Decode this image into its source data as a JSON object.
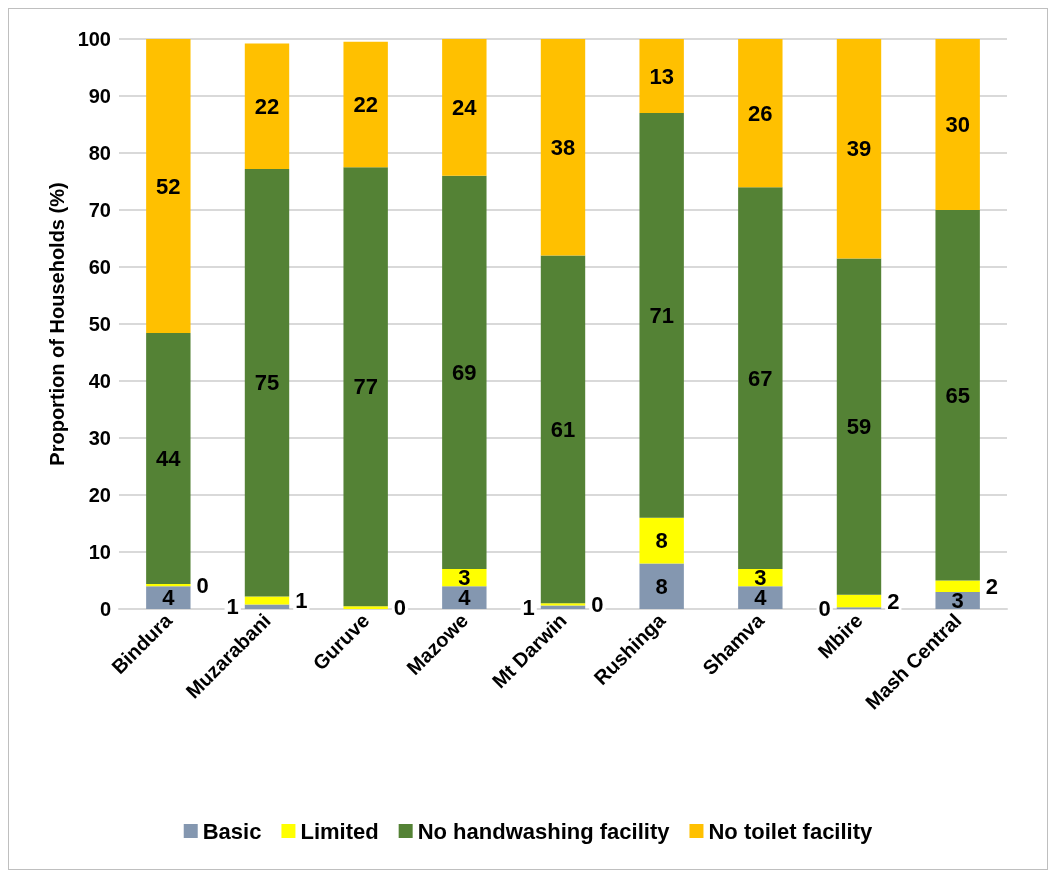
{
  "chart_data": {
    "type": "bar",
    "stacked": true,
    "ylabel": "Proportion of Households (%)",
    "categories": [
      "Bindura",
      "Muzarabani",
      "Guruve",
      "Mazowe",
      "Mt Darwin",
      "Rushinga",
      "Shamva",
      "Mbire",
      "Mash Central"
    ],
    "series": [
      {
        "name": "Basic",
        "color": "#8497b0",
        "values": [
          4,
          0.8,
          0,
          4,
          0.6,
          8,
          4,
          0.3,
          3
        ],
        "value_labels": [
          "4",
          "1",
          null,
          "4",
          "1",
          "8",
          "4",
          "0",
          "3"
        ]
      },
      {
        "name": "Limited",
        "color": "#ffff00",
        "values": [
          0.4,
          1.4,
          0.5,
          3,
          0.4,
          8,
          3,
          2.2,
          2
        ],
        "value_labels": [
          "0",
          "1",
          "0",
          "3",
          "0",
          "8",
          "3",
          "2",
          "2"
        ]
      },
      {
        "name": "No handwashing facility",
        "color": "#548235",
        "values": [
          44,
          75,
          77,
          69,
          61,
          71,
          67,
          59,
          65
        ],
        "value_labels": [
          "44",
          "75",
          "77",
          "69",
          "61",
          "71",
          "67",
          "59",
          "65"
        ]
      },
      {
        "name": "No toilet facility",
        "color": "#ffc000",
        "values": [
          51.6,
          22,
          22,
          24,
          38,
          13,
          26,
          38.5,
          30
        ],
        "value_labels": [
          "52",
          "22",
          "22",
          "24",
          "38",
          "13",
          "26",
          "39",
          "30"
        ]
      }
    ],
    "ylim": [
      0,
      100
    ],
    "yticks": [
      0,
      10,
      20,
      30,
      40,
      50,
      60,
      70,
      80,
      90,
      100
    ],
    "grid": "y",
    "legend": "bottom"
  }
}
